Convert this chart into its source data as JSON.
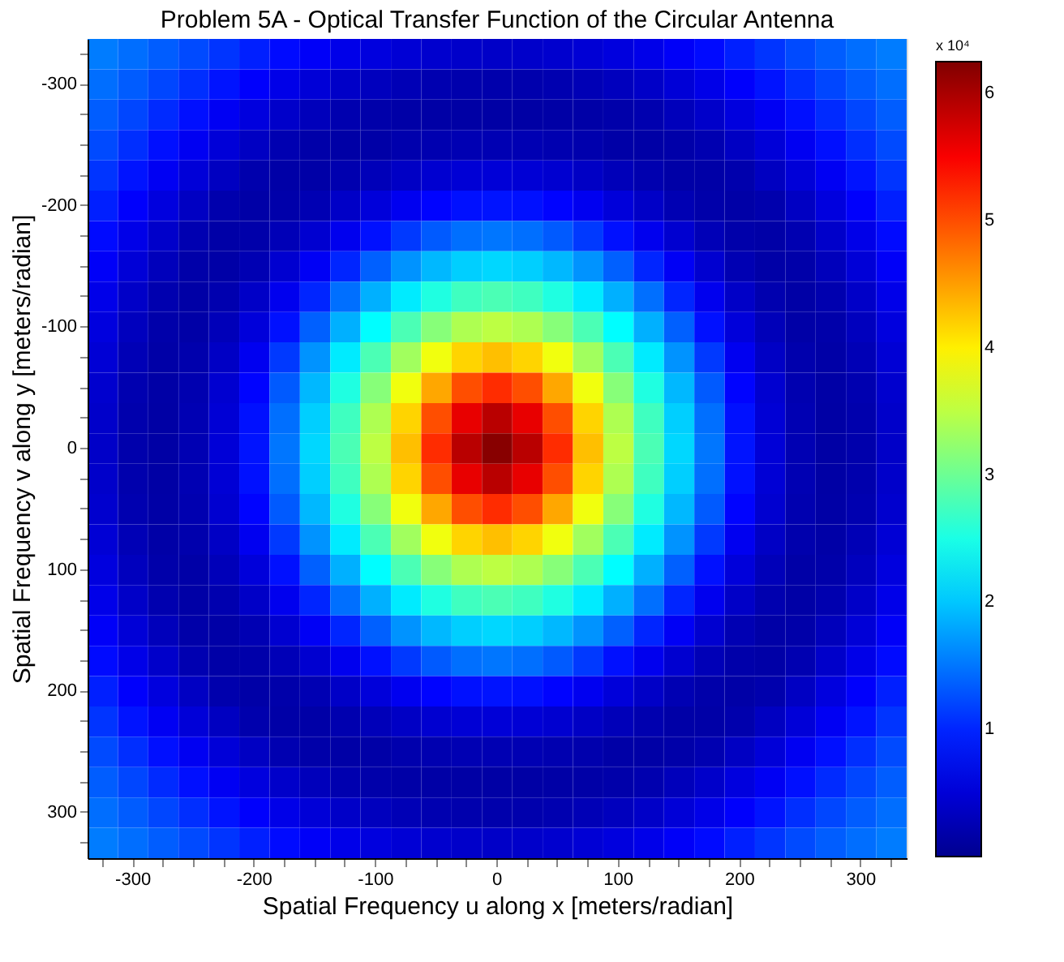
{
  "chart_data": {
    "type": "heatmap",
    "title": "Problem 5A - Optical Transfer Function of the Circular Antenna",
    "xlabel": "Spatial Frequency u along x [meters/radian]",
    "ylabel": "Spatial Frequency v along y [meters/radian]",
    "categories": [
      null,
      "-300",
      null,
      null,
      null,
      "-200",
      null,
      null,
      null,
      "-100",
      null,
      null,
      null,
      "0",
      null,
      null,
      null,
      "100",
      null,
      null,
      null,
      "200",
      null,
      null,
      null,
      "300",
      null
    ],
    "y_categories": [
      null,
      "-300",
      null,
      null,
      null,
      "-200",
      null,
      null,
      null,
      "-100",
      null,
      null,
      null,
      "0",
      null,
      null,
      null,
      "100",
      null,
      null,
      null,
      "200",
      null,
      null,
      null,
      "300",
      null
    ],
    "cells": [
      [
        1.54,
        1.45,
        1.35,
        1.23,
        1.1,
        0.97,
        0.84,
        0.73,
        0.63,
        0.55,
        0.49,
        0.44,
        0.41,
        0.4,
        0.41,
        0.44,
        0.49,
        0.55,
        0.63,
        0.73,
        0.84,
        0.97,
        1.1,
        1.23,
        1.35,
        1.45,
        1.54
      ],
      [
        1.45,
        1.34,
        1.21,
        1.06,
        0.9,
        0.76,
        0.62,
        0.5,
        0.4,
        0.33,
        0.27,
        0.23,
        0.21,
        0.2,
        0.21,
        0.23,
        0.27,
        0.33,
        0.4,
        0.5,
        0.62,
        0.76,
        0.9,
        1.06,
        1.21,
        1.34,
        1.45
      ],
      [
        1.35,
        1.21,
        1.04,
        0.87,
        0.7,
        0.55,
        0.41,
        0.31,
        0.22,
        0.19,
        0.17,
        0.16,
        0.15,
        0.15,
        0.15,
        0.16,
        0.17,
        0.19,
        0.22,
        0.31,
        0.41,
        0.55,
        0.7,
        0.87,
        1.04,
        1.21,
        1.35
      ],
      [
        1.23,
        1.06,
        0.87,
        0.69,
        0.51,
        0.36,
        0.24,
        0.18,
        0.16,
        0.17,
        0.21,
        0.23,
        0.25,
        0.25,
        0.25,
        0.23,
        0.21,
        0.17,
        0.16,
        0.18,
        0.24,
        0.36,
        0.51,
        0.69,
        0.87,
        1.06,
        1.23
      ],
      [
        1.1,
        0.9,
        0.7,
        0.51,
        0.35,
        0.21,
        0.17,
        0.17,
        0.22,
        0.29,
        0.38,
        0.45,
        0.49,
        0.5,
        0.49,
        0.45,
        0.38,
        0.29,
        0.22,
        0.17,
        0.17,
        0.21,
        0.35,
        0.51,
        0.7,
        0.9,
        1.1
      ],
      [
        0.97,
        0.76,
        0.55,
        0.36,
        0.21,
        0.17,
        0.19,
        0.25,
        0.39,
        0.52,
        0.68,
        0.8,
        0.88,
        0.9,
        0.88,
        0.8,
        0.68,
        0.52,
        0.39,
        0.25,
        0.19,
        0.17,
        0.21,
        0.36,
        0.55,
        0.76,
        0.97
      ],
      [
        0.84,
        0.62,
        0.41,
        0.24,
        0.17,
        0.19,
        0.28,
        0.45,
        0.66,
        0.88,
        1.13,
        1.33,
        1.46,
        1.5,
        1.46,
        1.33,
        1.13,
        0.88,
        0.66,
        0.45,
        0.28,
        0.19,
        0.17,
        0.24,
        0.41,
        0.62,
        0.84
      ],
      [
        0.73,
        0.5,
        0.31,
        0.18,
        0.17,
        0.25,
        0.45,
        0.71,
        1.01,
        1.37,
        1.68,
        1.91,
        2.05,
        2.1,
        2.05,
        1.91,
        1.68,
        1.37,
        1.01,
        0.71,
        0.45,
        0.25,
        0.17,
        0.18,
        0.31,
        0.5,
        0.73
      ],
      [
        0.63,
        0.4,
        0.22,
        0.16,
        0.22,
        0.39,
        0.66,
        1.01,
        1.46,
        1.86,
        2.22,
        2.53,
        2.73,
        2.8,
        2.73,
        2.53,
        2.22,
        1.86,
        1.46,
        1.01,
        0.66,
        0.39,
        0.22,
        0.16,
        0.22,
        0.4,
        0.63
      ],
      [
        0.55,
        0.33,
        0.19,
        0.17,
        0.29,
        0.52,
        0.88,
        1.37,
        1.86,
        2.34,
        2.8,
        3.17,
        3.41,
        3.5,
        3.41,
        3.17,
        2.8,
        2.34,
        1.86,
        1.37,
        0.88,
        0.52,
        0.29,
        0.17,
        0.19,
        0.33,
        0.55
      ],
      [
        0.49,
        0.27,
        0.17,
        0.21,
        0.38,
        0.68,
        1.13,
        1.68,
        2.22,
        2.8,
        3.33,
        3.82,
        4.17,
        4.3,
        4.17,
        3.82,
        3.33,
        2.8,
        2.22,
        1.68,
        1.13,
        0.68,
        0.38,
        0.21,
        0.17,
        0.27,
        0.49
      ],
      [
        0.44,
        0.23,
        0.16,
        0.23,
        0.45,
        0.8,
        1.33,
        1.91,
        2.53,
        3.17,
        3.82,
        4.45,
        4.99,
        5.2,
        4.99,
        4.45,
        3.82,
        3.17,
        2.53,
        1.91,
        1.33,
        0.8,
        0.45,
        0.23,
        0.16,
        0.23,
        0.44
      ],
      [
        0.41,
        0.21,
        0.15,
        0.25,
        0.49,
        0.88,
        1.46,
        2.05,
        2.73,
        3.41,
        4.17,
        4.99,
        5.61,
        5.9,
        5.61,
        4.99,
        4.17,
        3.41,
        2.73,
        2.05,
        1.46,
        0.88,
        0.49,
        0.25,
        0.15,
        0.21,
        0.41
      ],
      [
        0.4,
        0.2,
        0.15,
        0.25,
        0.5,
        0.9,
        1.5,
        2.1,
        2.8,
        3.5,
        4.3,
        5.2,
        5.9,
        6.2,
        5.9,
        5.2,
        4.3,
        3.5,
        2.8,
        2.1,
        1.5,
        0.9,
        0.5,
        0.25,
        0.15,
        0.2,
        0.4
      ],
      [
        0.41,
        0.21,
        0.15,
        0.25,
        0.49,
        0.88,
        1.46,
        2.05,
        2.73,
        3.41,
        4.17,
        4.99,
        5.61,
        5.9,
        5.61,
        4.99,
        4.17,
        3.41,
        2.73,
        2.05,
        1.46,
        0.88,
        0.49,
        0.25,
        0.15,
        0.21,
        0.41
      ],
      [
        0.44,
        0.23,
        0.16,
        0.23,
        0.45,
        0.8,
        1.33,
        1.91,
        2.53,
        3.17,
        3.82,
        4.45,
        4.99,
        5.2,
        4.99,
        4.45,
        3.82,
        3.17,
        2.53,
        1.91,
        1.33,
        0.8,
        0.45,
        0.23,
        0.16,
        0.23,
        0.44
      ],
      [
        0.49,
        0.27,
        0.17,
        0.21,
        0.38,
        0.68,
        1.13,
        1.68,
        2.22,
        2.8,
        3.33,
        3.82,
        4.17,
        4.3,
        4.17,
        3.82,
        3.33,
        2.8,
        2.22,
        1.68,
        1.13,
        0.68,
        0.38,
        0.21,
        0.17,
        0.27,
        0.49
      ],
      [
        0.55,
        0.33,
        0.19,
        0.17,
        0.29,
        0.52,
        0.88,
        1.37,
        1.86,
        2.34,
        2.8,
        3.17,
        3.41,
        3.5,
        3.41,
        3.17,
        2.8,
        2.34,
        1.86,
        1.37,
        0.88,
        0.52,
        0.29,
        0.17,
        0.19,
        0.33,
        0.55
      ],
      [
        0.63,
        0.4,
        0.22,
        0.16,
        0.22,
        0.39,
        0.66,
        1.01,
        1.46,
        1.86,
        2.22,
        2.53,
        2.73,
        2.8,
        2.73,
        2.53,
        2.22,
        1.86,
        1.46,
        1.01,
        0.66,
        0.39,
        0.22,
        0.16,
        0.22,
        0.4,
        0.63
      ],
      [
        0.73,
        0.5,
        0.31,
        0.18,
        0.17,
        0.25,
        0.45,
        0.71,
        1.01,
        1.37,
        1.68,
        1.91,
        2.05,
        2.1,
        2.05,
        1.91,
        1.68,
        1.37,
        1.01,
        0.71,
        0.45,
        0.25,
        0.17,
        0.18,
        0.31,
        0.5,
        0.73
      ],
      [
        0.84,
        0.62,
        0.41,
        0.24,
        0.17,
        0.19,
        0.28,
        0.45,
        0.66,
        0.88,
        1.13,
        1.33,
        1.46,
        1.5,
        1.46,
        1.33,
        1.13,
        0.88,
        0.66,
        0.45,
        0.28,
        0.19,
        0.17,
        0.24,
        0.41,
        0.62,
        0.84
      ],
      [
        0.97,
        0.76,
        0.55,
        0.36,
        0.21,
        0.17,
        0.19,
        0.25,
        0.39,
        0.52,
        0.68,
        0.8,
        0.88,
        0.9,
        0.88,
        0.8,
        0.68,
        0.52,
        0.39,
        0.25,
        0.19,
        0.17,
        0.21,
        0.36,
        0.55,
        0.76,
        0.97
      ],
      [
        1.1,
        0.9,
        0.7,
        0.51,
        0.35,
        0.21,
        0.17,
        0.17,
        0.22,
        0.29,
        0.38,
        0.45,
        0.49,
        0.5,
        0.49,
        0.45,
        0.38,
        0.29,
        0.22,
        0.17,
        0.17,
        0.21,
        0.35,
        0.51,
        0.7,
        0.9,
        1.1
      ],
      [
        1.23,
        1.06,
        0.87,
        0.69,
        0.51,
        0.36,
        0.24,
        0.18,
        0.16,
        0.17,
        0.21,
        0.23,
        0.25,
        0.25,
        0.25,
        0.23,
        0.21,
        0.17,
        0.16,
        0.18,
        0.24,
        0.36,
        0.51,
        0.69,
        0.87,
        1.06,
        1.23
      ],
      [
        1.35,
        1.21,
        1.04,
        0.87,
        0.7,
        0.55,
        0.41,
        0.31,
        0.22,
        0.19,
        0.17,
        0.16,
        0.15,
        0.15,
        0.15,
        0.16,
        0.17,
        0.19,
        0.22,
        0.31,
        0.41,
        0.55,
        0.7,
        0.87,
        1.04,
        1.21,
        1.35
      ],
      [
        1.45,
        1.34,
        1.21,
        1.06,
        0.9,
        0.76,
        0.62,
        0.5,
        0.4,
        0.33,
        0.27,
        0.23,
        0.21,
        0.2,
        0.21,
        0.23,
        0.27,
        0.33,
        0.4,
        0.5,
        0.62,
        0.76,
        0.9,
        1.06,
        1.21,
        1.34,
        1.45
      ],
      [
        1.54,
        1.45,
        1.35,
        1.23,
        1.1,
        0.97,
        0.84,
        0.73,
        0.63,
        0.55,
        0.49,
        0.44,
        0.41,
        0.4,
        0.41,
        0.44,
        0.49,
        0.55,
        0.63,
        0.73,
        0.84,
        0.97,
        1.1,
        1.23,
        1.35,
        1.45,
        1.54
      ]
    ],
    "clim": [
      0,
      6.25
    ],
    "cticks": [
      1,
      2,
      3,
      4,
      5,
      6
    ],
    "annotations": [
      "x 10⁴"
    ]
  }
}
